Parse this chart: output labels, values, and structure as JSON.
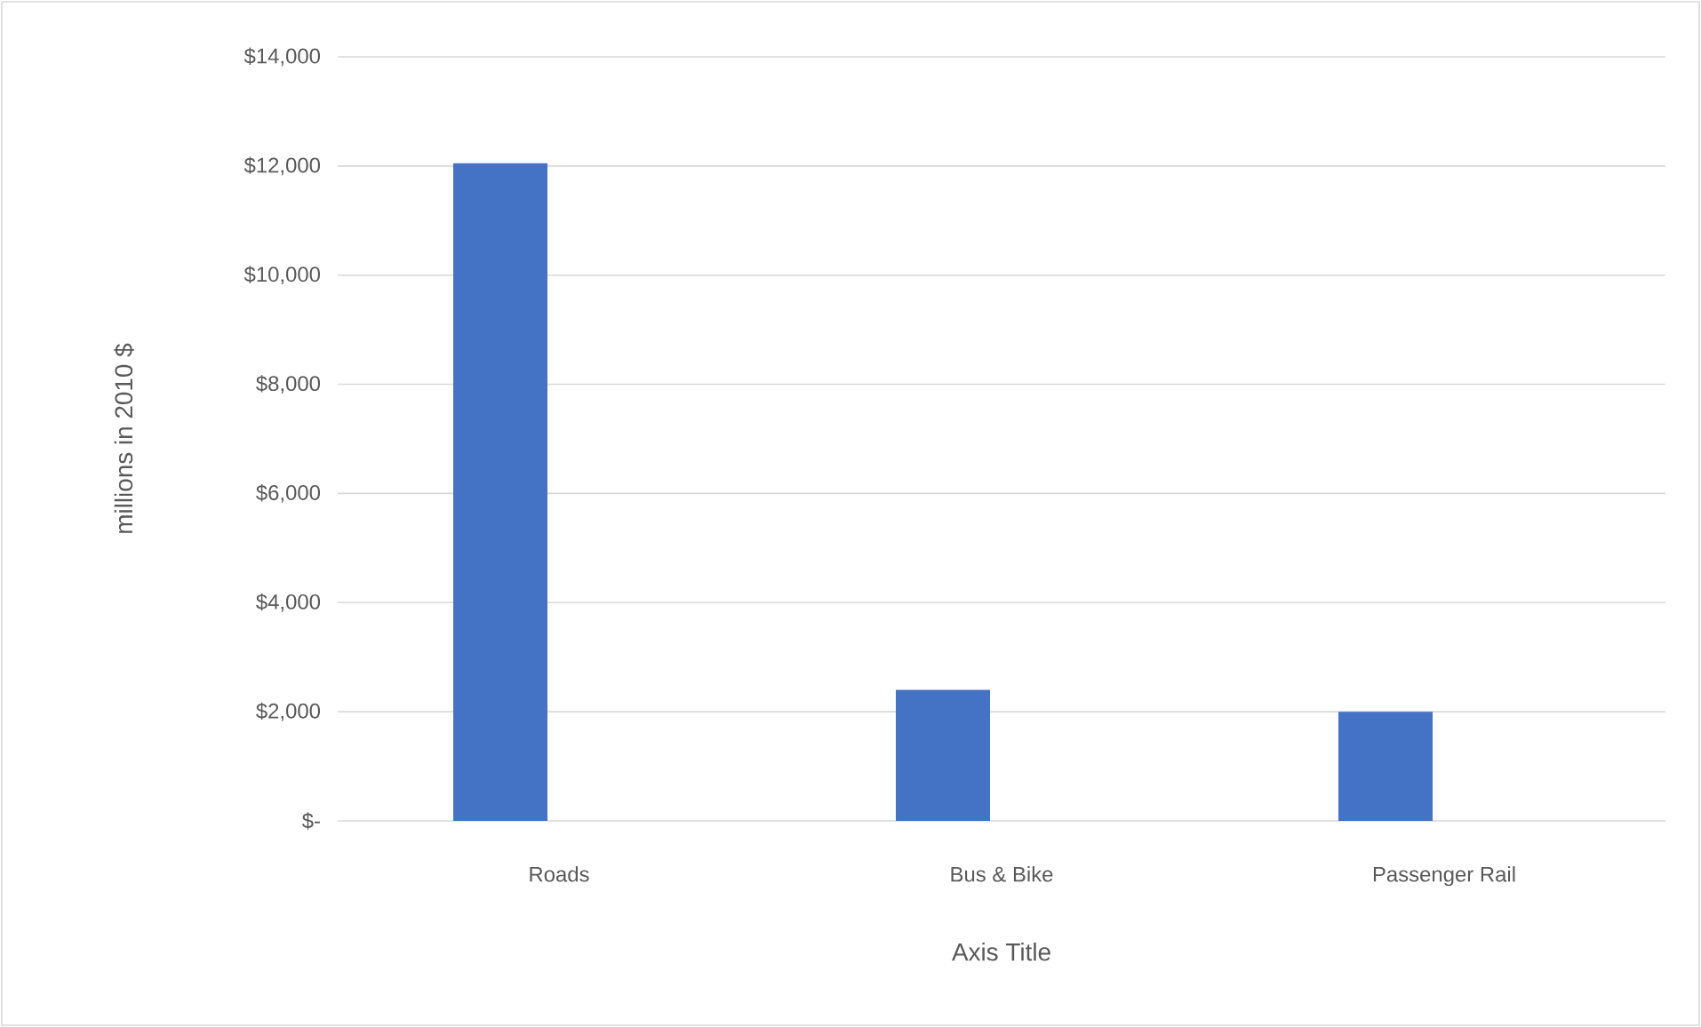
{
  "chart_data": {
    "type": "bar",
    "xlabel": "Axis Title",
    "ylabel": "millions in 2010 $",
    "categories": [
      "Roads",
      "Bus & Bike",
      "Passenger Rail"
    ],
    "values": [
      12050,
      2400,
      2000
    ],
    "color": "#4472c4",
    "ylim": [
      0,
      14000
    ],
    "yticks": [
      {
        "value": 0,
        "label": "$-"
      },
      {
        "value": 2000,
        "label": "$2,000"
      },
      {
        "value": 4000,
        "label": "$4,000"
      },
      {
        "value": 6000,
        "label": "$6,000"
      },
      {
        "value": 8000,
        "label": "$8,000"
      },
      {
        "value": 10000,
        "label": "$10,000"
      },
      {
        "value": 12000,
        "label": "$12,000"
      },
      {
        "value": 14000,
        "label": "$14,000"
      }
    ],
    "grid": "y"
  }
}
